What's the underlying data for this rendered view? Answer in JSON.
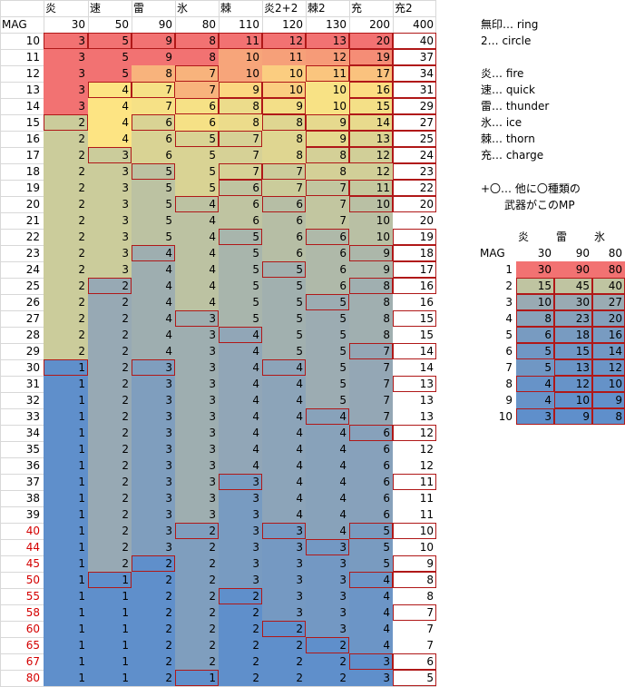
{
  "main_table": {
    "corner_label": "MAG",
    "columns": [
      {
        "label": "炎",
        "value": "30"
      },
      {
        "label": "速",
        "value": "50"
      },
      {
        "label": "雷",
        "value": "90"
      },
      {
        "label": "氷",
        "value": "80"
      },
      {
        "label": "棘",
        "value": "110"
      },
      {
        "label": "炎2+2",
        "value": "120"
      },
      {
        "label": "棘2",
        "value": "130"
      },
      {
        "label": "充",
        "value": "200"
      },
      {
        "label": "充2",
        "value": "400"
      }
    ],
    "rows": [
      {
        "mag": "10",
        "red": false,
        "v": [
          3,
          5,
          9,
          8,
          11,
          12,
          13,
          20,
          40
        ],
        "b": [
          0,
          1,
          2,
          3,
          4,
          5,
          6,
          7,
          8
        ]
      },
      {
        "mag": "11",
        "red": false,
        "v": [
          3,
          5,
          9,
          8,
          10,
          11,
          12,
          19,
          37
        ],
        "b": [
          7,
          8
        ]
      },
      {
        "mag": "12",
        "red": false,
        "v": [
          3,
          5,
          8,
          7,
          10,
          10,
          11,
          17,
          34
        ],
        "b": [
          3,
          6,
          7,
          8
        ]
      },
      {
        "mag": "13",
        "red": false,
        "v": [
          3,
          4,
          7,
          7,
          9,
          10,
          10,
          16,
          31
        ],
        "b": [
          1,
          2,
          4,
          5,
          7,
          8
        ]
      },
      {
        "mag": "14",
        "red": false,
        "v": [
          3,
          4,
          7,
          6,
          8,
          9,
          10,
          15,
          29
        ],
        "b": [
          3,
          4,
          5,
          7,
          8
        ]
      },
      {
        "mag": "15",
        "red": false,
        "v": [
          2,
          4,
          6,
          6,
          8,
          8,
          9,
          14,
          27
        ],
        "b": [
          0,
          2,
          5,
          6,
          7,
          8
        ]
      },
      {
        "mag": "16",
        "red": false,
        "v": [
          2,
          4,
          6,
          5,
          7,
          8,
          9,
          13,
          25
        ],
        "b": [
          3,
          4,
          6,
          7,
          8
        ]
      },
      {
        "mag": "17",
        "red": false,
        "v": [
          2,
          3,
          6,
          5,
          7,
          8,
          8,
          12,
          24
        ],
        "b": [
          1,
          6,
          7,
          8
        ]
      },
      {
        "mag": "18",
        "red": false,
        "v": [
          2,
          3,
          5,
          5,
          7,
          7,
          8,
          12,
          23
        ],
        "b": [
          2,
          4,
          5,
          8
        ]
      },
      {
        "mag": "19",
        "red": false,
        "v": [
          2,
          3,
          5,
          5,
          6,
          7,
          7,
          11,
          22
        ],
        "b": [
          4,
          6,
          7,
          8
        ]
      },
      {
        "mag": "20",
        "red": false,
        "v": [
          2,
          3,
          5,
          4,
          6,
          6,
          7,
          10,
          20
        ],
        "b": [
          3,
          5,
          7,
          8
        ]
      },
      {
        "mag": "21",
        "red": false,
        "v": [
          2,
          3,
          5,
          4,
          6,
          6,
          7,
          10,
          20
        ],
        "b": []
      },
      {
        "mag": "22",
        "red": false,
        "v": [
          2,
          3,
          5,
          4,
          5,
          6,
          6,
          10,
          19
        ],
        "b": [
          4,
          6,
          8
        ]
      },
      {
        "mag": "23",
        "red": false,
        "v": [
          2,
          3,
          4,
          4,
          5,
          6,
          6,
          9,
          18
        ],
        "b": [
          2,
          7,
          8
        ]
      },
      {
        "mag": "24",
        "red": false,
        "v": [
          2,
          3,
          4,
          4,
          5,
          5,
          6,
          9,
          17
        ],
        "b": [
          5,
          8
        ]
      },
      {
        "mag": "25",
        "red": false,
        "v": [
          2,
          2,
          4,
          4,
          5,
          5,
          6,
          8,
          16
        ],
        "b": [
          1,
          7,
          8
        ]
      },
      {
        "mag": "26",
        "red": false,
        "v": [
          2,
          2,
          4,
          4,
          5,
          5,
          5,
          8,
          16
        ],
        "b": [
          6
        ]
      },
      {
        "mag": "27",
        "red": false,
        "v": [
          2,
          2,
          4,
          3,
          5,
          5,
          5,
          8,
          15
        ],
        "b": [
          3,
          8
        ]
      },
      {
        "mag": "28",
        "red": false,
        "v": [
          2,
          2,
          4,
          3,
          4,
          5,
          5,
          8,
          15
        ],
        "b": [
          4
        ]
      },
      {
        "mag": "29",
        "red": false,
        "v": [
          2,
          2,
          4,
          3,
          4,
          5,
          5,
          7,
          14
        ],
        "b": [
          7,
          8
        ]
      },
      {
        "mag": "30",
        "red": false,
        "v": [
          1,
          2,
          3,
          3,
          4,
          4,
          5,
          7,
          14
        ],
        "b": [
          0,
          2,
          5
        ]
      },
      {
        "mag": "31",
        "red": false,
        "v": [
          1,
          2,
          3,
          3,
          4,
          4,
          5,
          7,
          13
        ],
        "b": [
          8
        ]
      },
      {
        "mag": "32",
        "red": false,
        "v": [
          1,
          2,
          3,
          3,
          4,
          4,
          5,
          7,
          13
        ],
        "b": []
      },
      {
        "mag": "33",
        "red": false,
        "v": [
          1,
          2,
          3,
          3,
          4,
          4,
          4,
          7,
          13
        ],
        "b": [
          6
        ]
      },
      {
        "mag": "34",
        "red": false,
        "v": [
          1,
          2,
          3,
          3,
          4,
          4,
          4,
          6,
          12
        ],
        "b": [
          7,
          8
        ]
      },
      {
        "mag": "35",
        "red": false,
        "v": [
          1,
          2,
          3,
          3,
          4,
          4,
          4,
          6,
          12
        ],
        "b": []
      },
      {
        "mag": "36",
        "red": false,
        "v": [
          1,
          2,
          3,
          3,
          4,
          4,
          4,
          6,
          12
        ],
        "b": []
      },
      {
        "mag": "37",
        "red": false,
        "v": [
          1,
          2,
          3,
          3,
          3,
          4,
          4,
          6,
          11
        ],
        "b": [
          4,
          8
        ]
      },
      {
        "mag": "38",
        "red": false,
        "v": [
          1,
          2,
          3,
          3,
          3,
          4,
          4,
          6,
          11
        ],
        "b": []
      },
      {
        "mag": "39",
        "red": false,
        "v": [
          1,
          2,
          3,
          3,
          3,
          4,
          4,
          6,
          11
        ],
        "b": []
      },
      {
        "mag": "40",
        "red": true,
        "v": [
          1,
          2,
          3,
          2,
          3,
          3,
          4,
          5,
          10
        ],
        "b": [
          3,
          5,
          7,
          8
        ]
      },
      {
        "mag": "44",
        "red": true,
        "v": [
          1,
          2,
          3,
          2,
          3,
          3,
          3,
          5,
          10
        ],
        "b": [
          6
        ]
      },
      {
        "mag": "45",
        "red": true,
        "v": [
          1,
          2,
          2,
          2,
          3,
          3,
          3,
          5,
          9
        ],
        "b": [
          2,
          8
        ]
      },
      {
        "mag": "50",
        "red": true,
        "v": [
          1,
          1,
          2,
          2,
          3,
          3,
          3,
          4,
          8
        ],
        "b": [
          1,
          7,
          8
        ]
      },
      {
        "mag": "55",
        "red": true,
        "v": [
          1,
          1,
          2,
          2,
          2,
          3,
          3,
          4,
          8
        ],
        "b": [
          4
        ]
      },
      {
        "mag": "58",
        "red": true,
        "v": [
          1,
          1,
          2,
          2,
          2,
          3,
          3,
          4,
          7
        ],
        "b": [
          8
        ]
      },
      {
        "mag": "60",
        "red": true,
        "v": [
          1,
          1,
          2,
          2,
          2,
          2,
          3,
          4,
          7
        ],
        "b": [
          5
        ]
      },
      {
        "mag": "65",
        "red": true,
        "v": [
          1,
          1,
          2,
          2,
          2,
          2,
          2,
          4,
          7
        ],
        "b": [
          6
        ]
      },
      {
        "mag": "67",
        "red": true,
        "v": [
          1,
          1,
          2,
          2,
          2,
          2,
          2,
          3,
          6
        ],
        "b": [
          7,
          8
        ]
      },
      {
        "mag": "80",
        "red": true,
        "v": [
          1,
          1,
          2,
          1,
          2,
          2,
          2,
          3,
          5
        ],
        "b": [
          3,
          8
        ]
      }
    ]
  },
  "legend": [
    "無印… ring",
    "2… circle",
    "炎… fire",
    "速… quick",
    "雷… thunder",
    "氷… ice",
    "棘… thorn",
    "充… charge"
  ],
  "note": [
    "+〇… 他に〇種類の",
    "武器がこのMP"
  ],
  "sub_table": {
    "corner_label": "MAG",
    "columns": [
      {
        "label": "炎",
        "value": "30"
      },
      {
        "label": "雷",
        "value": "90"
      },
      {
        "label": "氷",
        "value": "80"
      }
    ],
    "rows": [
      {
        "mag": "1",
        "v": [
          30,
          90,
          80
        ],
        "b": []
      },
      {
        "mag": "2",
        "v": [
          15,
          45,
          40
        ],
        "b": [
          0,
          1,
          2
        ]
      },
      {
        "mag": "3",
        "v": [
          10,
          30,
          27
        ],
        "b": [
          0,
          1,
          2
        ]
      },
      {
        "mag": "4",
        "v": [
          8,
          23,
          20
        ],
        "b": [
          0,
          1,
          2
        ]
      },
      {
        "mag": "5",
        "v": [
          6,
          18,
          16
        ],
        "b": [
          0,
          1,
          2
        ]
      },
      {
        "mag": "6",
        "v": [
          5,
          15,
          14
        ],
        "b": [
          0,
          1,
          2
        ]
      },
      {
        "mag": "7",
        "v": [
          5,
          13,
          12
        ],
        "b": [
          1,
          2
        ]
      },
      {
        "mag": "8",
        "v": [
          4,
          12,
          10
        ],
        "b": [
          0,
          1,
          2
        ]
      },
      {
        "mag": "9",
        "v": [
          4,
          10,
          9
        ],
        "b": [
          1,
          2
        ]
      },
      {
        "mag": "10",
        "v": [
          3,
          9,
          8
        ],
        "b": [
          0,
          1,
          2
        ]
      }
    ]
  },
  "colors": {
    "scale_low": "#5f8fcb",
    "scale_mid_low": "#97a9b4",
    "scale_mid": "#cbcc9b",
    "scale_mid_high": "#fde483",
    "scale_high": "#f27272",
    "box_border": "#b01818",
    "red_text": "#d40000"
  }
}
